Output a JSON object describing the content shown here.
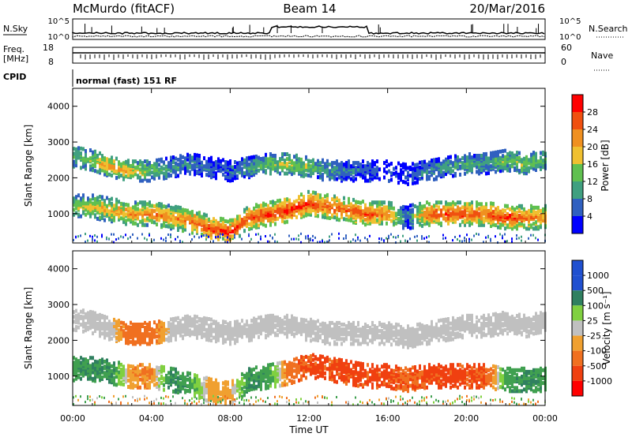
{
  "header": {
    "station": "McMurdo (fitACF)",
    "beam": "Beam 14",
    "date": "20/Mar/2016"
  },
  "nsky_panel": {
    "left_label": "N.Sky",
    "right_label": "N.Search",
    "tick_top": "10^5",
    "tick_bottom": "10^0",
    "right_tick_top": "10^5",
    "right_tick_bottom": "10^0"
  },
  "freq_panel": {
    "left_label_line1": "Freq.",
    "left_label_line2": "[MHz]",
    "right_label": "Nave",
    "left_ticks": [
      "18",
      "8"
    ],
    "right_ticks": [
      "60",
      "0"
    ]
  },
  "cpid_panel": {
    "left_label": "CPID",
    "program": "normal (fast) 151 RF"
  },
  "colors": {
    "power": [
      "#0000ff",
      "#3060c0",
      "#40a080",
      "#60c050",
      "#f0c030",
      "#f09020",
      "#f05010",
      "#ff0000"
    ],
    "velocity_neg": [
      "#ff0000",
      "#f04010",
      "#f07020",
      "#f0a030"
    ],
    "velocity_pos": [
      "#2050d0",
      "#308060",
      "#40a050",
      "#80d040"
    ],
    "ground_scatter": "#c0c0c0"
  },
  "chart_data": [
    {
      "type": "heatmap",
      "title": "",
      "xlabel": "",
      "ylabel": "Slant Range [km]",
      "x_range_hours": [
        0,
        24
      ],
      "xlim_labels": [
        "00:00",
        "24:00"
      ],
      "ylim_km": [
        180,
        4500
      ],
      "y_ticks": [
        "1000",
        "2000",
        "3000",
        "4000"
      ],
      "y_tick_values": [
        1000,
        2000,
        3000,
        4000
      ],
      "colorbar": {
        "label": "Power [dB]",
        "range": [
          0,
          32
        ],
        "ticks": [
          "4",
          "8",
          "12",
          "16",
          "20",
          "24",
          "28"
        ],
        "tick_values": [
          4,
          8,
          12,
          16,
          20,
          24,
          28
        ]
      },
      "bands": [
        {
          "name": "far",
          "center_km": [
            2600,
            2500,
            2300,
            2200,
            2200,
            2300,
            2400,
            2300,
            2200,
            2300,
            2400,
            2400,
            2300,
            2200,
            2200,
            2200,
            2200,
            2100,
            2200,
            2300,
            2400,
            2400,
            2500,
            2400,
            2500
          ],
          "halfwidth_km": 280,
          "power_db": [
            12,
            16,
            22,
            20,
            14,
            10,
            8,
            6,
            6,
            10,
            14,
            16,
            14,
            10,
            8,
            6,
            4,
            4,
            8,
            10,
            12,
            10,
            14,
            16,
            12
          ]
        },
        {
          "name": "near",
          "center_km": [
            1200,
            1200,
            1100,
            1000,
            1000,
            900,
            800,
            600,
            500,
            900,
            1000,
            1100,
            1300,
            1200,
            1100,
            1000,
            1000,
            900,
            1000,
            1000,
            1000,
            1000,
            900,
            900,
            900
          ],
          "halfwidth_km": 320,
          "power_db": [
            14,
            18,
            20,
            22,
            24,
            22,
            24,
            28,
            30,
            26,
            28,
            30,
            28,
            26,
            26,
            28,
            24,
            6,
            26,
            28,
            28,
            26,
            28,
            26,
            22
          ]
        }
      ]
    },
    {
      "type": "heatmap",
      "title": "",
      "xlabel": "Time UT",
      "ylabel": "Slant Range [km]",
      "x_range_hours": [
        0,
        24
      ],
      "x_ticks": [
        "00:00",
        "04:00",
        "08:00",
        "12:00",
        "16:00",
        "20:00",
        "00:00"
      ],
      "x_tick_hours": [
        0,
        4,
        8,
        12,
        16,
        20,
        24
      ],
      "ylim_km": [
        180,
        4500
      ],
      "y_ticks": [
        "1000",
        "2000",
        "3000",
        "4000"
      ],
      "y_tick_values": [
        1000,
        2000,
        3000,
        4000
      ],
      "colorbar": {
        "label": "Velocity [m s⁻¹]",
        "ticks": [
          "1000",
          "500",
          "100",
          "25",
          "-25",
          "-100",
          "-500",
          "-1000"
        ]
      },
      "bands": [
        {
          "name": "far",
          "center_km": [
            2600,
            2500,
            2300,
            2200,
            2200,
            2300,
            2400,
            2300,
            2200,
            2300,
            2400,
            2400,
            2300,
            2200,
            2200,
            2200,
            2200,
            2100,
            2200,
            2300,
            2400,
            2400,
            2500,
            2400,
            2500
          ],
          "halfwidth_km": 300,
          "velocity_ms": [
            0,
            0,
            0,
            -200,
            -150,
            0,
            0,
            0,
            0,
            0,
            0,
            0,
            0,
            0,
            0,
            0,
            0,
            0,
            0,
            0,
            0,
            0,
            0,
            0,
            0
          ]
        },
        {
          "name": "near",
          "center_km": [
            1200,
            1200,
            1100,
            1000,
            1000,
            900,
            800,
            600,
            500,
            900,
            1000,
            1100,
            1300,
            1200,
            1100,
            1000,
            1000,
            900,
            1000,
            1000,
            1000,
            1000,
            900,
            900,
            900
          ],
          "halfwidth_km": 320,
          "velocity_ms": [
            150,
            200,
            200,
            -80,
            -100,
            200,
            150,
            -60,
            -60,
            200,
            150,
            -150,
            -300,
            -300,
            -300,
            -300,
            -300,
            -200,
            -300,
            -300,
            -300,
            -250,
            150,
            200,
            150
          ]
        }
      ]
    }
  ]
}
